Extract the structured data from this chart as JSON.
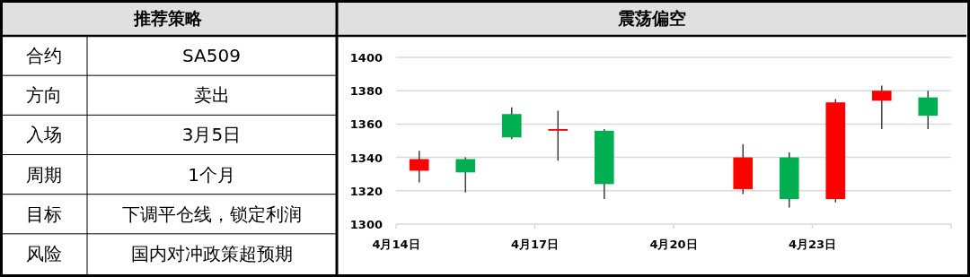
{
  "chart_data": [
    {
      "type": "other",
      "title": "推荐策略",
      "y_categories": [
        "合约",
        "方向",
        "入场",
        "周期",
        "目标",
        "风险"
      ],
      "annotations": [
        "SA509",
        "卖出",
        "3月5日",
        "1个月",
        "下调平仓线，锁定利润",
        "国内对冲政策超预期"
      ]
    },
    {
      "type": "candlestick",
      "title": "震荡偏空",
      "x": [
        "--04-14T12:00",
        "--04-15T12:00",
        "--04-16T12:00",
        "--04-17T12:00",
        "--04-18T12:00",
        "--04-21T12:00",
        "--04-22T12:00",
        "--04-23T12:00",
        "--04-24T12:00",
        "--04-25T12:00"
      ],
      "ohlc": [
        [
          1332,
          1344,
          1325,
          1339
        ],
        [
          1339,
          1340,
          1319,
          1331
        ],
        [
          1366,
          1370,
          1351,
          1352
        ],
        [
          1356,
          1368,
          1338,
          1357
        ],
        [
          1356,
          1357,
          1315,
          1324
        ],
        [
          1321,
          1348,
          1318,
          1340
        ],
        [
          1340,
          1343,
          1310,
          1315
        ],
        [
          1315,
          1375,
          1313,
          1373
        ],
        [
          1374,
          1383,
          1357,
          1380
        ],
        [
          1376,
          1380,
          1357,
          1365
        ]
      ],
      "colors": [
        "#ff0000",
        "#00b050",
        "#00b050",
        "#ff0000",
        "#00b050",
        "#ff0000",
        "#00b050",
        "#ff0000",
        "#ff0000",
        "#00b050"
      ],
      "xlim": [
        "--04-14",
        "--04-26"
      ],
      "xticks": [
        {
          "value": "--04-14",
          "label": "4月14日"
        },
        {
          "value": "--04-17",
          "label": "4月17日"
        },
        {
          "value": "--04-20",
          "label": "4月20日"
        },
        {
          "value": "--04-23",
          "label": "4月23日"
        },
        {
          "value": "--04-26",
          "label": null
        }
      ],
      "ylim": [
        1300,
        1400
      ],
      "yticks": [
        1300,
        1320,
        1340,
        1360,
        1380,
        1400
      ],
      "grid": "y"
    }
  ]
}
